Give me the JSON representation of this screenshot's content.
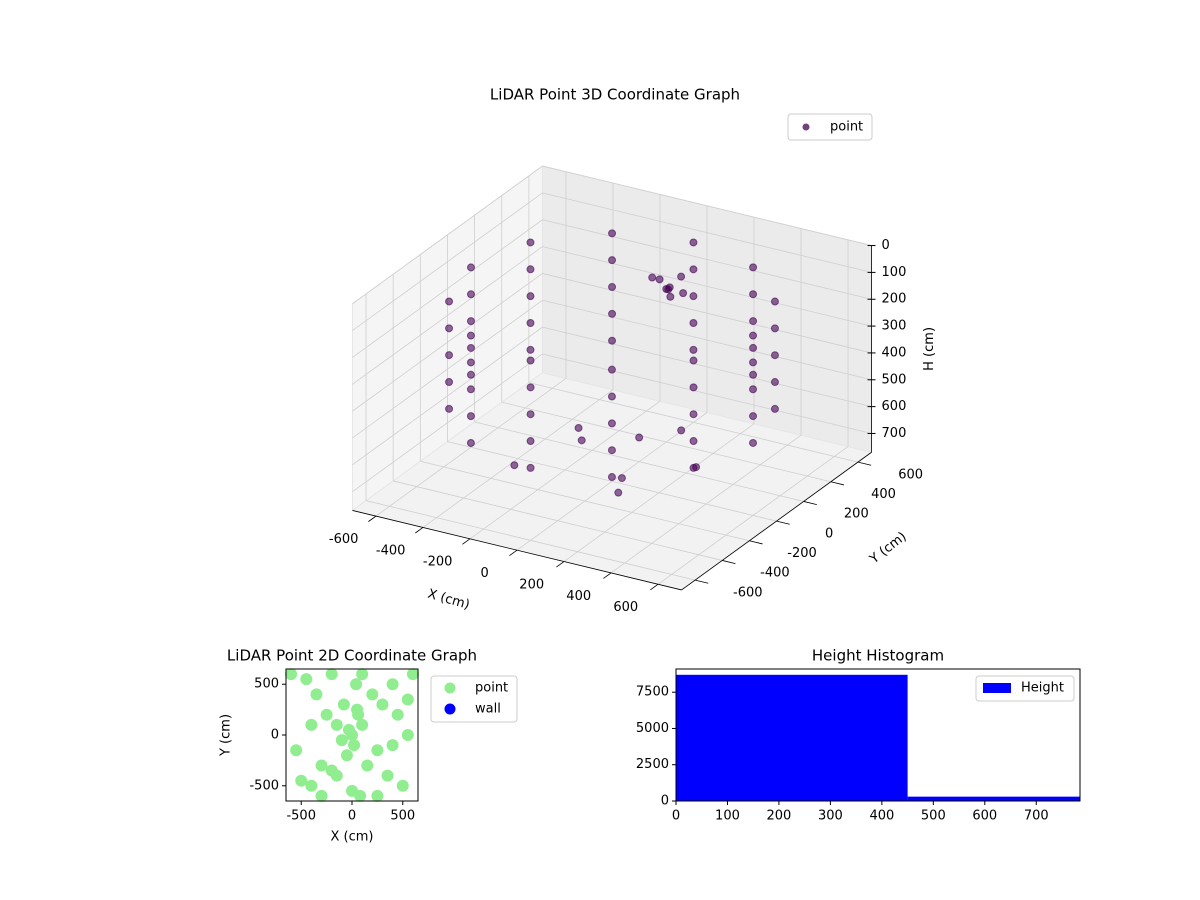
{
  "chart_data": [
    {
      "type": "scatter3d",
      "title": "LiDAR Point 3D Coordinate Graph",
      "xlabel": "X (cm)",
      "ylabel": "Y (cm)",
      "zlabel": "H (cm)",
      "xlim": [
        -700,
        700
      ],
      "ylim": [
        -700,
        700
      ],
      "zlim": [
        0,
        770
      ],
      "zinvert": true,
      "xticks": [
        -600,
        -400,
        -200,
        0,
        200,
        400,
        600
      ],
      "yticks": [
        -600,
        -400,
        -200,
        0,
        200,
        400,
        600
      ],
      "zticks": [
        0,
        100,
        200,
        300,
        400,
        500,
        600,
        700
      ],
      "legend": "upper right",
      "series": [
        {
          "name": "point",
          "color": "#440154",
          "x": [
            600,
            600,
            600,
            600,
            600,
            520,
            520,
            520,
            520,
            520,
            300,
            300,
            300,
            300,
            300,
            0,
            0,
            0,
            0,
            0,
            -300,
            -300,
            -300,
            -300,
            -300,
            -520,
            -520,
            -520,
            -520,
            -520,
            -600,
            -600,
            -600,
            -600,
            -600,
            -520,
            -520,
            -520,
            -520,
            -520,
            -300,
            -300,
            -300,
            -300,
            -300,
            0,
            0,
            0,
            0,
            0,
            300,
            300,
            300,
            300,
            300,
            520,
            520,
            520,
            520,
            520,
            -40,
            0,
            40,
            -20,
            20,
            60,
            -60,
            0,
            -200,
            100,
            0,
            300,
            -300,
            200,
            -100,
            150
          ],
          "y": [
            0,
            0,
            0,
            0,
            0,
            300,
            300,
            300,
            300,
            300,
            520,
            520,
            520,
            520,
            520,
            600,
            600,
            600,
            600,
            600,
            520,
            520,
            520,
            520,
            520,
            300,
            300,
            300,
            300,
            300,
            0,
            0,
            0,
            0,
            0,
            -300,
            -300,
            -300,
            -300,
            -300,
            -520,
            -520,
            -520,
            -520,
            -520,
            -600,
            -600,
            -600,
            -600,
            -600,
            -520,
            -520,
            -520,
            -520,
            -520,
            -300,
            -300,
            -300,
            -300,
            -300,
            420,
            400,
            440,
            460,
            380,
            420,
            400,
            430,
            100,
            -100,
            200,
            100,
            -200,
            -300,
            -50,
            250
          ],
          "z": [
            100,
            200,
            300,
            400,
            500,
            100,
            200,
            300,
            400,
            500,
            100,
            200,
            300,
            400,
            500,
            100,
            200,
            300,
            400,
            500,
            100,
            200,
            300,
            400,
            500,
            100,
            200,
            300,
            400,
            500,
            100,
            200,
            300,
            400,
            500,
            100,
            200,
            300,
            400,
            500,
            100,
            200,
            300,
            400,
            500,
            100,
            200,
            300,
            400,
            500,
            100,
            200,
            300,
            400,
            500,
            100,
            200,
            300,
            400,
            500,
            180,
            200,
            160,
            220,
            190,
            210,
            170,
            240,
            650,
            700,
            680,
            690,
            700,
            660,
            620,
            640
          ]
        }
      ]
    },
    {
      "type": "scatter",
      "title": "LiDAR Point 2D Coordinate Graph",
      "xlabel": "X (cm)",
      "ylabel": "Y (cm)",
      "xlim": [
        -650,
        650
      ],
      "ylim": [
        -650,
        650
      ],
      "xticks": [
        -500,
        0,
        500
      ],
      "yticks": [
        -500,
        0,
        500
      ],
      "legend": "outside right",
      "series": [
        {
          "name": "point",
          "color": "#90ee90",
          "x": [
            -600,
            -500,
            -450,
            -400,
            -350,
            -300,
            -250,
            -200,
            -150,
            -100,
            -80,
            -50,
            -30,
            0,
            20,
            40,
            60,
            80,
            100,
            150,
            200,
            250,
            300,
            350,
            400,
            450,
            500,
            550,
            600,
            -550,
            -400,
            -300,
            -150,
            0,
            100,
            250,
            400,
            550,
            -200,
            50
          ],
          "y": [
            600,
            -450,
            550,
            -500,
            400,
            -300,
            200,
            600,
            100,
            -50,
            300,
            -200,
            50,
            0,
            -100,
            500,
            200,
            -600,
            100,
            -300,
            400,
            -150,
            300,
            -400,
            500,
            200,
            -500,
            350,
            600,
            -150,
            100,
            -600,
            -400,
            -550,
            600,
            -600,
            -100,
            0,
            -350,
            250
          ]
        },
        {
          "name": "wall",
          "color": "#0000ff",
          "x": [],
          "y": []
        }
      ]
    },
    {
      "type": "histogram",
      "title": "Height Histogram",
      "bins": [
        0,
        450,
        785
      ],
      "xlim": [
        0,
        785
      ],
      "ylim": [
        0,
        9100
      ],
      "xticks": [
        0,
        100,
        200,
        300,
        400,
        500,
        600,
        700
      ],
      "yticks": [
        0,
        2500,
        5000,
        7500
      ],
      "legend": "upper right",
      "series": [
        {
          "name": "Height",
          "color": "#0000ff",
          "values": [
            8700,
            300
          ]
        }
      ]
    }
  ]
}
